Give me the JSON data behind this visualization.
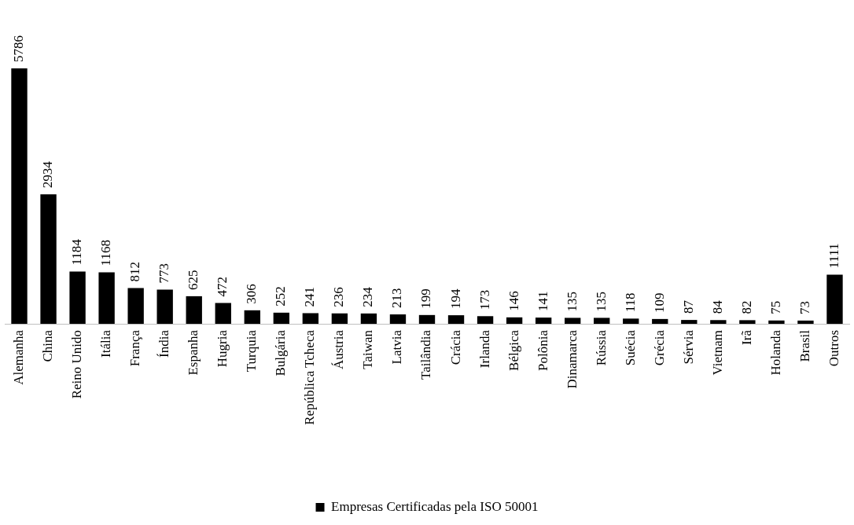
{
  "chart_data": {
    "type": "bar",
    "categories": [
      "Alemanha",
      "China",
      "Reino Unido",
      "Itália",
      "França",
      "Índia",
      "Espanha",
      "Hugria",
      "Turquia",
      "Bulgária",
      "República Tcheca",
      "Áustria",
      "Taiwan",
      "Latvia",
      "Tailândia",
      "Crácia",
      "Irlanda",
      "Bélgica",
      "Polônia",
      "Dinamarca",
      "Rússia",
      "Suécia",
      "Grécia",
      "Sérvia",
      "Vietnam",
      "Irã",
      "Holanda",
      "Brasil",
      "Outros"
    ],
    "series": [
      {
        "name": "Empresas Certificadas pela ISO 50001",
        "color": "#000000",
        "values": [
          5786,
          2934,
          1184,
          1168,
          812,
          773,
          625,
          472,
          306,
          252,
          241,
          236,
          234,
          213,
          199,
          194,
          173,
          146,
          141,
          135,
          135,
          118,
          109,
          87,
          84,
          82,
          75,
          73,
          1111
        ]
      }
    ],
    "data_labels": true,
    "legend": "bottom",
    "grid": false
  }
}
